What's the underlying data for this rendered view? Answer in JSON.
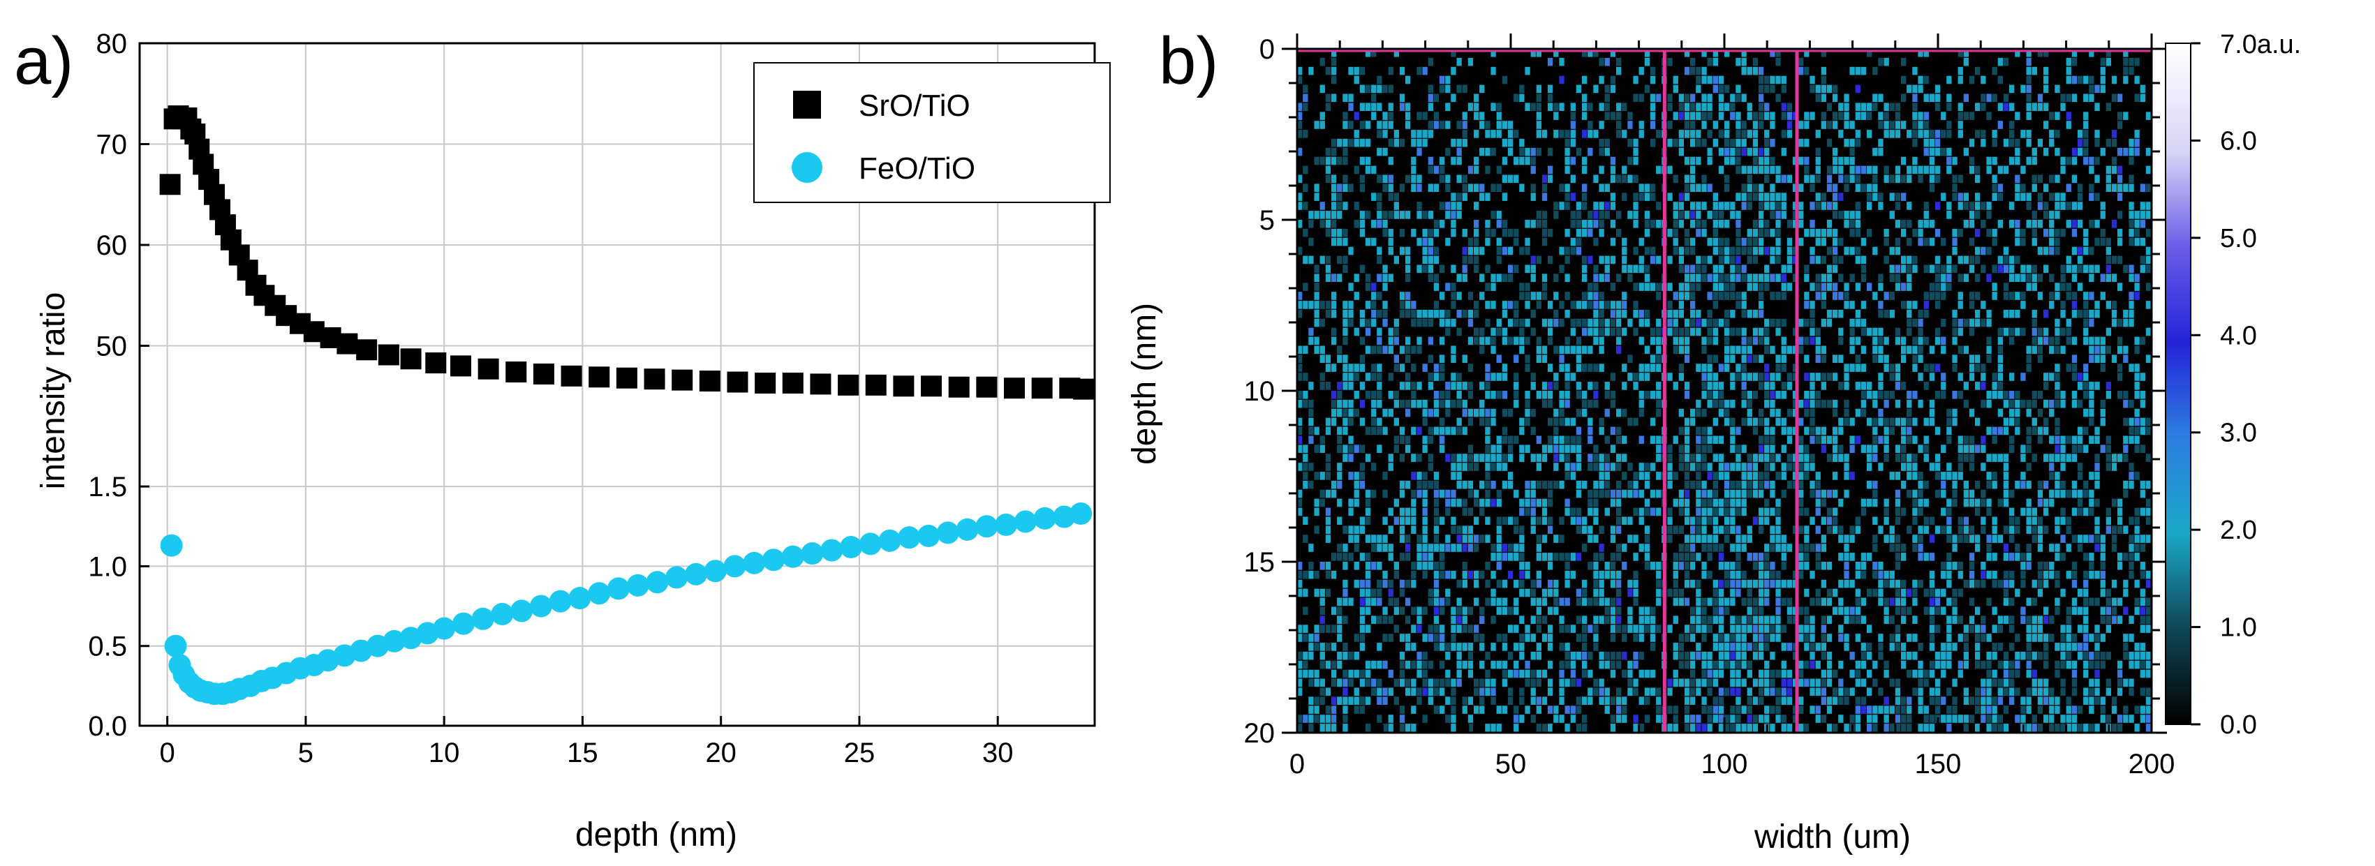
{
  "chart_data": [
    {
      "panel": "a)",
      "type": "scatter",
      "xlabel": "depth (nm)",
      "ylabel": "intensity ratio",
      "xlim": [
        -1,
        33.5
      ],
      "x_ticks": [
        "0",
        "5",
        "10",
        "15",
        "20",
        "25",
        "30"
      ],
      "grid": true,
      "legend": "top-right",
      "legend_entries": [
        "SrO/TiO",
        "FeO/TiO"
      ],
      "upper_axis": {
        "range": [
          40,
          80
        ],
        "tick_labels": [
          "50",
          "60",
          "70",
          "80"
        ]
      },
      "lower_axis": {
        "range": [
          0,
          1.75
        ],
        "tick_labels": [
          "0.0",
          "0.5",
          "1.0",
          "1.5"
        ]
      },
      "series": [
        {
          "name": "SrO/TiO",
          "marker": "square",
          "color": "#000000",
          "points": [
            [
              0.1,
              66
            ],
            [
              0.25,
              72.5
            ],
            [
              0.4,
              72.8
            ],
            [
              0.55,
              72.5
            ],
            [
              0.7,
              72.6
            ],
            [
              0.85,
              71.5
            ],
            [
              1.0,
              71
            ],
            [
              1.15,
              69.5
            ],
            [
              1.3,
              68
            ],
            [
              1.5,
              66.5
            ],
            [
              1.7,
              65
            ],
            [
              1.9,
              63.5
            ],
            [
              2.1,
              62
            ],
            [
              2.3,
              60.5
            ],
            [
              2.6,
              59
            ],
            [
              2.9,
              57.5
            ],
            [
              3.2,
              56
            ],
            [
              3.5,
              55
            ],
            [
              3.9,
              54
            ],
            [
              4.3,
              53
            ],
            [
              4.8,
              52.2
            ],
            [
              5.3,
              51.4
            ],
            [
              5.9,
              50.8
            ],
            [
              6.5,
              50.2
            ],
            [
              7.2,
              49.6
            ],
            [
              8,
              49.1
            ],
            [
              8.8,
              48.7
            ],
            [
              9.7,
              48.3
            ],
            [
              10.6,
              48
            ],
            [
              11.6,
              47.7
            ],
            [
              12.6,
              47.4
            ],
            [
              13.6,
              47.2
            ],
            [
              14.6,
              47
            ],
            [
              15.6,
              46.9
            ],
            [
              16.6,
              46.8
            ],
            [
              17.6,
              46.7
            ],
            [
              18.6,
              46.6
            ],
            [
              19.6,
              46.5
            ],
            [
              20.6,
              46.4
            ],
            [
              21.6,
              46.3
            ],
            [
              22.6,
              46.3
            ],
            [
              23.6,
              46.2
            ],
            [
              24.6,
              46.1
            ],
            [
              25.6,
              46.1
            ],
            [
              26.6,
              46
            ],
            [
              27.6,
              46
            ],
            [
              28.6,
              45.9
            ],
            [
              29.6,
              45.9
            ],
            [
              30.6,
              45.8
            ],
            [
              31.6,
              45.8
            ],
            [
              32.6,
              45.8
            ],
            [
              33.1,
              45.7
            ]
          ]
        },
        {
          "name": "FeO/TiO",
          "marker": "circle",
          "color": "#1AC8F0",
          "points": [
            [
              0.15,
              1.13
            ],
            [
              0.3,
              0.5
            ],
            [
              0.45,
              0.38
            ],
            [
              0.6,
              0.32
            ],
            [
              0.8,
              0.27
            ],
            [
              1.0,
              0.24
            ],
            [
              1.2,
              0.22
            ],
            [
              1.45,
              0.21
            ],
            [
              1.7,
              0.2
            ],
            [
              2.0,
              0.2
            ],
            [
              2.3,
              0.21
            ],
            [
              2.6,
              0.23
            ],
            [
              3.0,
              0.25
            ],
            [
              3.4,
              0.28
            ],
            [
              3.8,
              0.3
            ],
            [
              4.3,
              0.33
            ],
            [
              4.8,
              0.36
            ],
            [
              5.3,
              0.38
            ],
            [
              5.8,
              0.41
            ],
            [
              6.4,
              0.44
            ],
            [
              7.0,
              0.47
            ],
            [
              7.6,
              0.5
            ],
            [
              8.2,
              0.53
            ],
            [
              8.8,
              0.55
            ],
            [
              9.4,
              0.58
            ],
            [
              10.0,
              0.61
            ],
            [
              10.7,
              0.64
            ],
            [
              11.4,
              0.67
            ],
            [
              12.1,
              0.7
            ],
            [
              12.8,
              0.72
            ],
            [
              13.5,
              0.75
            ],
            [
              14.2,
              0.78
            ],
            [
              14.9,
              0.8
            ],
            [
              15.6,
              0.83
            ],
            [
              16.3,
              0.86
            ],
            [
              17.0,
              0.88
            ],
            [
              17.7,
              0.9
            ],
            [
              18.4,
              0.93
            ],
            [
              19.1,
              0.95
            ],
            [
              19.8,
              0.97
            ],
            [
              20.5,
              1.0
            ],
            [
              21.2,
              1.02
            ],
            [
              21.9,
              1.04
            ],
            [
              22.6,
              1.06
            ],
            [
              23.3,
              1.08
            ],
            [
              24.0,
              1.1
            ],
            [
              24.7,
              1.12
            ],
            [
              25.4,
              1.14
            ],
            [
              26.1,
              1.16
            ],
            [
              26.8,
              1.18
            ],
            [
              27.5,
              1.19
            ],
            [
              28.2,
              1.21
            ],
            [
              28.9,
              1.23
            ],
            [
              29.6,
              1.25
            ],
            [
              30.3,
              1.26
            ],
            [
              31.0,
              1.28
            ],
            [
              31.7,
              1.3
            ],
            [
              32.4,
              1.31
            ],
            [
              33.0,
              1.33
            ]
          ]
        }
      ]
    },
    {
      "panel": "b)",
      "type": "heatmap",
      "xlabel": "width (um)",
      "ylabel": "depth (nm)",
      "xlim": [
        0,
        200
      ],
      "ylim": [
        0,
        20
      ],
      "x_ticks": [
        "0",
        "50",
        "100",
        "150",
        "200"
      ],
      "y_ticks": [
        "0",
        "5",
        "10",
        "15",
        "20"
      ],
      "colorbar": {
        "range": [
          0,
          7
        ],
        "unit": "a.u.",
        "tick_labels": [
          "0.0",
          "1.0",
          "2.0",
          "3.0",
          "4.0",
          "5.0",
          "6.0",
          "7.0"
        ],
        "top_label": "7.0a.u."
      },
      "marker_lines": {
        "color": "#E0389A",
        "x_values": [
          86,
          117
        ],
        "y_value": 0
      },
      "colors": {
        "background": "#000000",
        "low": "#0E4C5E",
        "mid": "#1AA8C8",
        "high": "#3A78E0",
        "peak": "#2B2BD8"
      }
    }
  ]
}
